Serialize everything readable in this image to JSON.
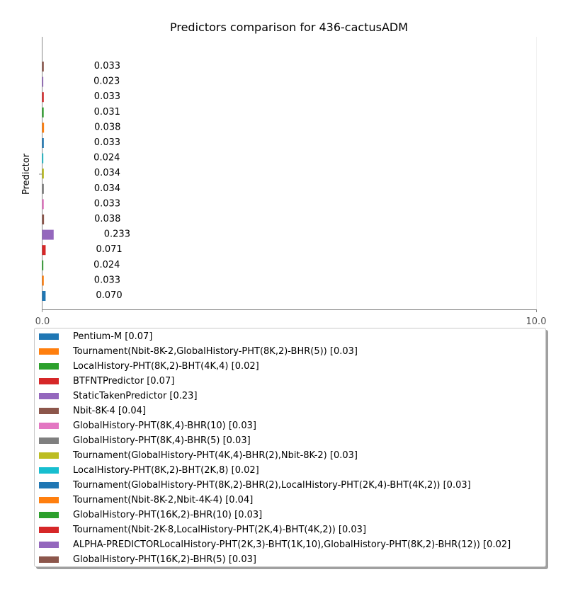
{
  "chart_data": {
    "type": "bar",
    "orientation": "horizontal",
    "title": "Predictors comparison for 436-cactusADM",
    "ylabel": "Predictor",
    "xlabel": "",
    "xlim": [
      0,
      10
    ],
    "xticks": [
      "0.0",
      "10.0"
    ],
    "grid": false,
    "legend_position": "bottom",
    "series": [
      {
        "name": "Pentium-M [0.07]",
        "value": 0.07,
        "label": "0.070",
        "color": "#1f77b4"
      },
      {
        "name": "Tournament(Nbit-8K-2,GlobalHistory-PHT(8K,2)-BHR(5)) [0.03]",
        "value": 0.033,
        "label": "0.033",
        "color": "#ff7f0e"
      },
      {
        "name": "LocalHistory-PHT(8K,2)-BHT(4K,4) [0.02]",
        "value": 0.024,
        "label": "0.024",
        "color": "#2ca02c"
      },
      {
        "name": "BTFNTPredictor [0.07]",
        "value": 0.071,
        "label": "0.071",
        "color": "#d62728"
      },
      {
        "name": "StaticTakenPredictor [0.23]",
        "value": 0.233,
        "label": "0.233",
        "color": "#9467bd"
      },
      {
        "name": "Nbit-8K-4 [0.04]",
        "value": 0.038,
        "label": "0.038",
        "color": "#8c564b"
      },
      {
        "name": "GlobalHistory-PHT(8K,4)-BHR(10) [0.03]",
        "value": 0.033,
        "label": "0.033",
        "color": "#e377c2"
      },
      {
        "name": "GlobalHistory-PHT(8K,4)-BHR(5) [0.03]",
        "value": 0.034,
        "label": "0.034",
        "color": "#7f7f7f"
      },
      {
        "name": "Tournament(GlobalHistory-PHT(4K,4)-BHR(2),Nbit-8K-2) [0.03]",
        "value": 0.034,
        "label": "0.034",
        "color": "#bcbd22"
      },
      {
        "name": "LocalHistory-PHT(8K,2)-BHT(2K,8) [0.02]",
        "value": 0.024,
        "label": "0.024",
        "color": "#17becf"
      },
      {
        "name": "Tournament(GlobalHistory-PHT(8K,2)-BHR(2),LocalHistory-PHT(2K,4)-BHT(4K,2)) [0.03]",
        "value": 0.033,
        "label": "0.033",
        "color": "#1f77b4"
      },
      {
        "name": "Tournament(Nbit-8K-2,Nbit-4K-4) [0.04]",
        "value": 0.038,
        "label": "0.038",
        "color": "#ff7f0e"
      },
      {
        "name": "GlobalHistory-PHT(16K,2)-BHR(10) [0.03]",
        "value": 0.031,
        "label": "0.031",
        "color": "#2ca02c"
      },
      {
        "name": "Tournament(Nbit-2K-8,LocalHistory-PHT(2K,4)-BHT(4K,2)) [0.03]",
        "value": 0.033,
        "label": "0.033",
        "color": "#d62728"
      },
      {
        "name": "ALPHA-PREDICTORLocalHistory-PHT(2K,3)-BHT(1K,10),GlobalHistory-PHT(8K,2)-BHR(12)) [0.02]",
        "value": 0.023,
        "label": "0.023",
        "color": "#9467bd"
      },
      {
        "name": "GlobalHistory-PHT(16K,2)-BHR(5) [0.03]",
        "value": 0.033,
        "label": "0.033",
        "color": "#8c564b"
      }
    ]
  }
}
